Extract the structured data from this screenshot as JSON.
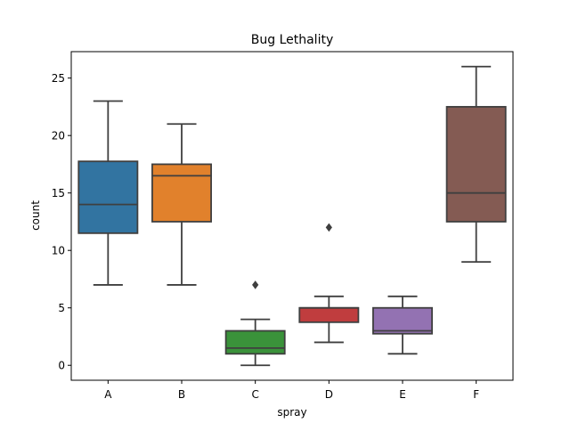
{
  "chart_data": {
    "type": "box",
    "title": "Bug Lethality",
    "xlabel": "spray",
    "ylabel": "count",
    "ylim": [
      -1.3,
      27.3
    ],
    "yticks": [
      0,
      5,
      10,
      15,
      20,
      25
    ],
    "grid": false,
    "categories": [
      "A",
      "B",
      "C",
      "D",
      "E",
      "F"
    ],
    "boxes": [
      {
        "category": "A",
        "color": "#3274a1",
        "whisker_low": 7,
        "q1": 11.5,
        "median": 14,
        "q3": 17.75,
        "whisker_high": 23,
        "outliers": []
      },
      {
        "category": "B",
        "color": "#e1812c",
        "whisker_low": 7,
        "q1": 12.5,
        "median": 16.5,
        "q3": 17.5,
        "whisker_high": 21,
        "outliers": []
      },
      {
        "category": "C",
        "color": "#3a923a",
        "whisker_low": 0,
        "q1": 1,
        "median": 1.5,
        "q3": 3,
        "whisker_high": 4,
        "outliers": [
          7
        ]
      },
      {
        "category": "D",
        "color": "#c03d3e",
        "whisker_low": 2,
        "q1": 3.75,
        "median": 5,
        "q3": 5,
        "whisker_high": 6,
        "outliers": [
          12
        ]
      },
      {
        "category": "E",
        "color": "#9372b2",
        "whisker_low": 1,
        "q1": 2.75,
        "median": 3,
        "q3": 5,
        "whisker_high": 6,
        "outliers": []
      },
      {
        "category": "F",
        "color": "#845b53",
        "whisker_low": 9,
        "q1": 12.5,
        "median": 15,
        "q3": 22.5,
        "whisker_high": 26,
        "outliers": []
      }
    ]
  }
}
